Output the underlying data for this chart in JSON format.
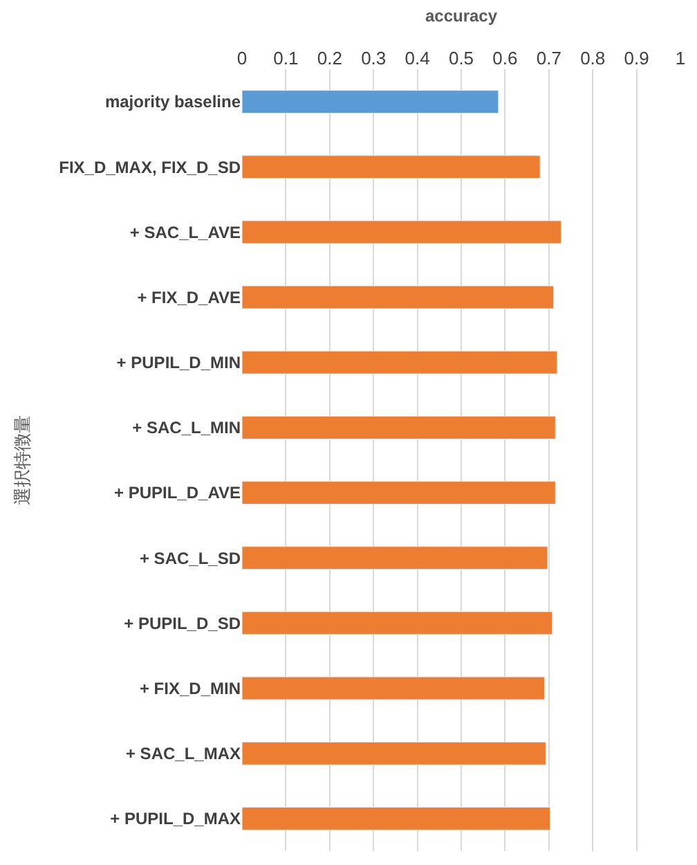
{
  "chart_data": {
    "type": "bar",
    "orientation": "horizontal",
    "xlabel": "accuracy",
    "ylabel": "選択特徴量",
    "categories": [
      "majority baseline",
      "FIX_D_MAX, FIX_D_SD",
      "+ SAC_L_AVE",
      "+ FIX_D_AVE",
      "+ PUPIL_D_MIN",
      "+ SAC_L_MIN",
      "+ PUPIL_D_AVE",
      "+ SAC_L_SD",
      "+ PUPIL_D_SD",
      "+ FIX_D_MIN",
      "+ SAC_L_MAX",
      "+ PUPIL_D_MAX"
    ],
    "values": [
      0.585,
      0.68,
      0.728,
      0.711,
      0.719,
      0.715,
      0.715,
      0.697,
      0.708,
      0.69,
      0.693,
      0.703
    ],
    "colors": [
      "#5b9bd5",
      "#ed7d31",
      "#ed7d31",
      "#ed7d31",
      "#ed7d31",
      "#ed7d31",
      "#ed7d31",
      "#ed7d31",
      "#ed7d31",
      "#ed7d31",
      "#ed7d31",
      "#ed7d31"
    ],
    "xlim": [
      0,
      1
    ],
    "xticks": [
      0,
      0.1,
      0.2,
      0.3,
      0.4,
      0.5,
      0.6,
      0.7,
      0.8,
      0.9,
      1
    ],
    "grid": "x",
    "legend": false
  }
}
